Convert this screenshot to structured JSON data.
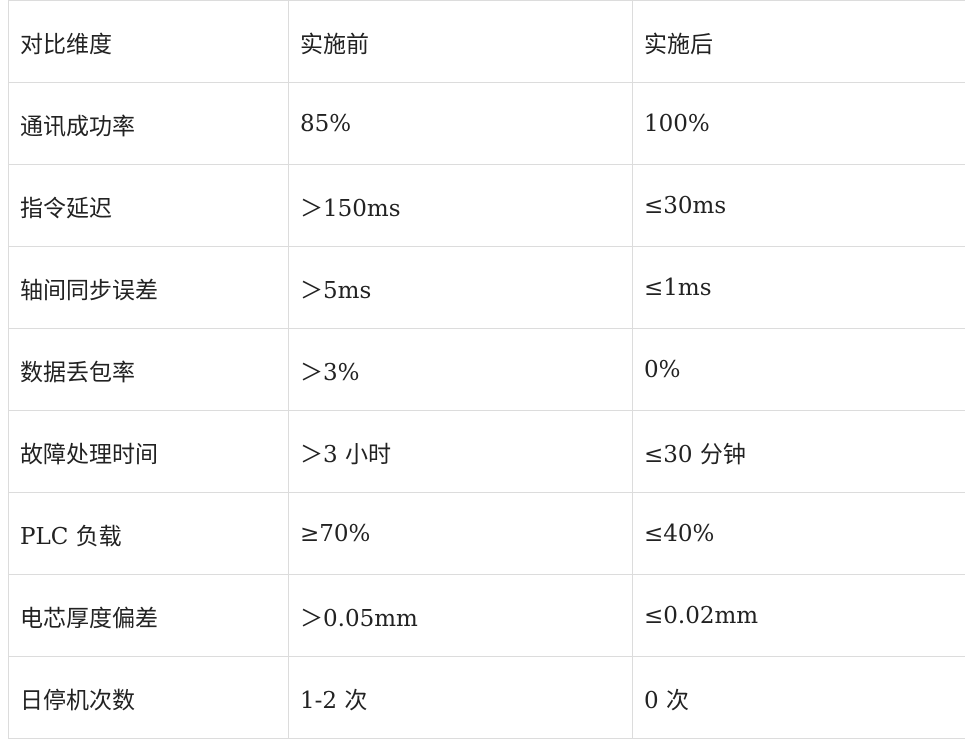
{
  "table": {
    "headers": [
      "对比维度",
      "实施前",
      "实施后"
    ],
    "rows": [
      [
        "通讯成功率",
        "85%",
        "100%"
      ],
      [
        "指令延迟",
        "＞150ms",
        "≤30ms"
      ],
      [
        "轴间同步误差",
        "＞5ms",
        "≤1ms"
      ],
      [
        "数据丢包率",
        "＞3%",
        "0%"
      ],
      [
        "故障处理时间",
        "＞3 小时",
        "≤30 分钟"
      ],
      [
        "PLC 负载",
        "≥70%",
        "≤40%"
      ],
      [
        "电芯厚度偏差",
        "＞0.05mm",
        "≤0.02mm"
      ],
      [
        "日停机次数",
        "1-2 次",
        "0 次"
      ]
    ]
  }
}
